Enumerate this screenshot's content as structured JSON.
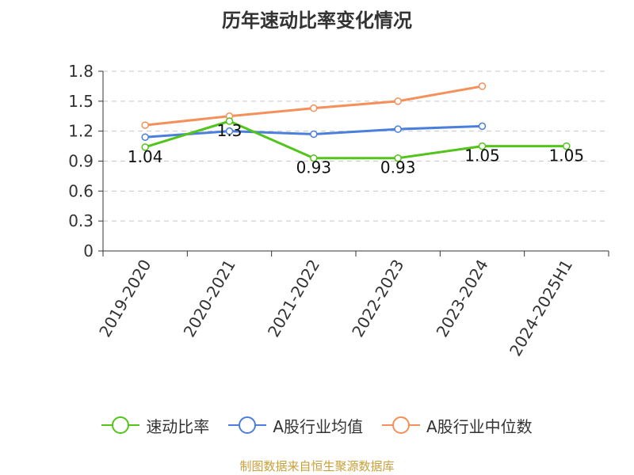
{
  "title": "历年速动比率变化情况",
  "source": "制图数据来自恒生聚源数据库",
  "chart_data": {
    "type": "line",
    "categories": [
      "2019-2020",
      "2020-2021",
      "2021-2022",
      "2022-2023",
      "2023-2024",
      "2024-2025H1"
    ],
    "ylim": [
      0,
      1.8
    ],
    "yticks": [
      "0",
      "0.3",
      "0.6",
      "0.9",
      "1.2",
      "1.5",
      "1.8"
    ],
    "grid": true,
    "legend_position": "bottom",
    "series": [
      {
        "name": "速动比率",
        "color": "#52c41a",
        "values": [
          1.04,
          1.3,
          0.93,
          0.93,
          1.05,
          1.05
        ],
        "labels": [
          "1.04",
          "1.3",
          "0.93",
          "0.93",
          "1.05",
          "1.05"
        ]
      },
      {
        "name": "A股行业均值",
        "color": "#4a7fdb",
        "values": [
          1.14,
          1.2,
          1.17,
          1.22,
          1.25,
          null
        ]
      },
      {
        "name": "A股行业中位数",
        "color": "#f5905a",
        "values": [
          1.26,
          1.35,
          1.43,
          1.5,
          1.65,
          null
        ]
      }
    ]
  }
}
